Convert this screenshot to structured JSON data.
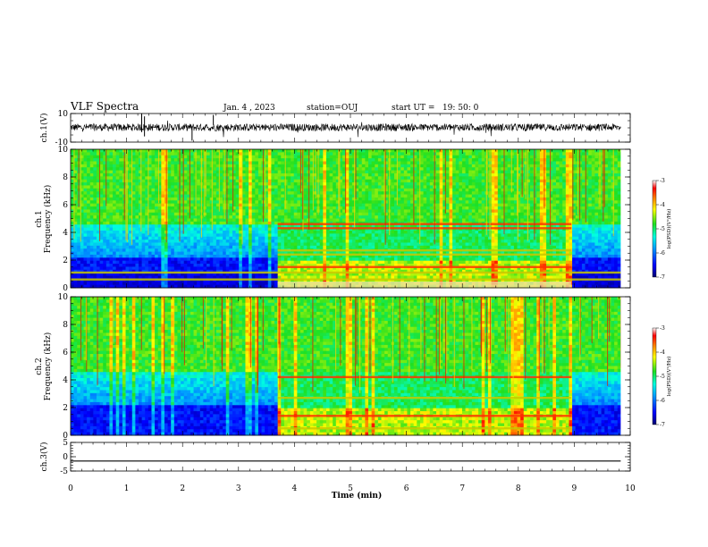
{
  "header": {
    "title": "VLF Spectra",
    "date": "Jan. 4 , 2023",
    "station": "station=OUJ",
    "start": "start UT =   19: 50: 0"
  },
  "chart_data": [
    {
      "id": "ch1-waveform",
      "type": "line",
      "ylabel": "ch.1(V)",
      "ylim": [
        -10,
        10
      ],
      "yticks": [
        10,
        -10
      ],
      "xlim": [
        0,
        10
      ],
      "description_series": "raw waveform"
    },
    {
      "id": "ch1-spectrogram",
      "type": "heatmap",
      "ylabel": "ch.1\nFrequency (kHz)",
      "ylabel_lines": [
        "ch.1",
        "Frequency (kHz)"
      ],
      "ylim": [
        0,
        10
      ],
      "yticks": [
        0,
        2,
        4,
        6,
        8,
        10
      ],
      "xlim": [
        0,
        10
      ],
      "data_end_min": 9.83,
      "colorbar": {
        "label": "log(PSD)(V²/Hz)",
        "range": [
          -7,
          -3
        ],
        "ticks": [
          -3,
          -4,
          -5,
          -6,
          -7
        ]
      },
      "segments_min": [
        0,
        3.7,
        8.95,
        9.83
      ],
      "bands_khz": [
        0.6,
        1.1,
        1.5,
        2.4,
        2.7,
        4.3,
        4.6
      ]
    },
    {
      "id": "ch2-spectrogram",
      "type": "heatmap",
      "ylabel": "ch.2\nFrequency (kHz)",
      "ylabel_lines": [
        "ch.2",
        "Frequency (kHz)"
      ],
      "ylim": [
        0,
        10
      ],
      "yticks": [
        0,
        2,
        4,
        6,
        8,
        10
      ],
      "xlim": [
        0,
        10
      ],
      "data_end_min": 9.83,
      "colorbar": {
        "label": "log(PSD)(V²/Hz)",
        "range": [
          -7,
          -3
        ],
        "ticks": [
          -3,
          -4,
          -5,
          -6,
          -7
        ]
      },
      "segments_min": [
        0,
        3.7,
        8.95,
        9.83
      ],
      "bands_khz": [
        0.5,
        1.4,
        2.7,
        4.2
      ]
    },
    {
      "id": "ch3-waveform",
      "type": "line",
      "ylabel": "ch.3(V)",
      "ylim": [
        -5,
        5
      ],
      "yticks": [
        5,
        0,
        -5
      ],
      "xlim": [
        0,
        10
      ],
      "x": [
        0,
        9.83
      ],
      "y": [
        -1.5,
        -1.5
      ]
    }
  ],
  "xaxis": {
    "label": "Time (min)",
    "ticks": [
      0,
      1,
      2,
      3,
      4,
      5,
      6,
      7,
      8,
      9,
      10
    ]
  }
}
